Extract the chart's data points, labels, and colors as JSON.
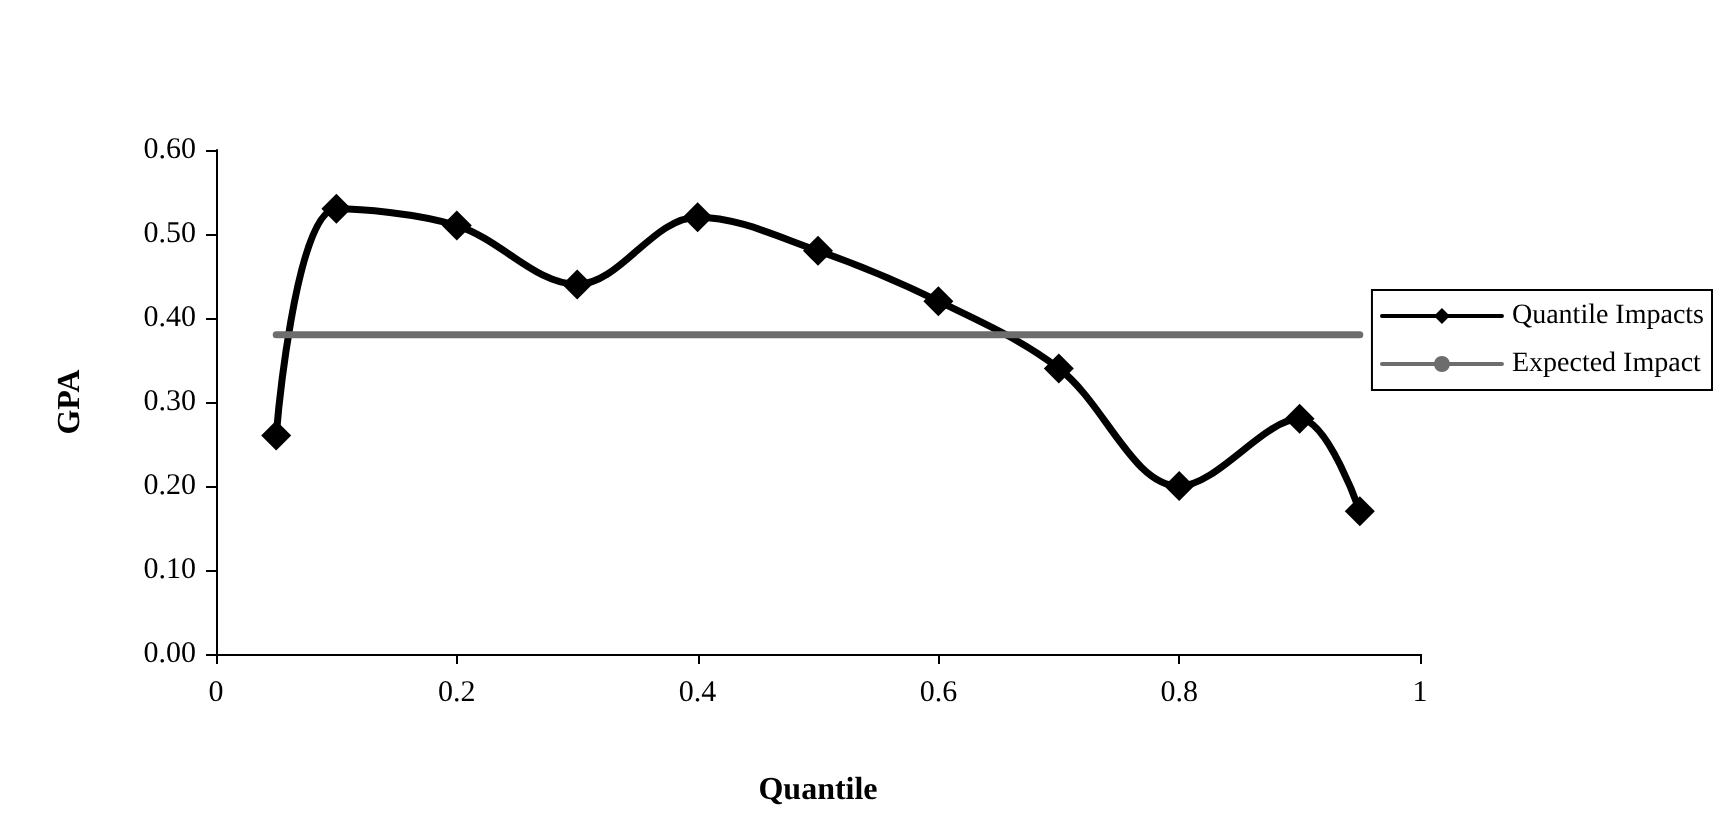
{
  "chart_data": {
    "type": "line",
    "xlabel": "Quantile",
    "ylabel": "GPA",
    "x": [
      0.05,
      0.1,
      0.2,
      0.3,
      0.4,
      0.5,
      0.6,
      0.7,
      0.8,
      0.9,
      0.95
    ],
    "series": [
      {
        "name": "Quantile Impacts",
        "color": "#000000",
        "values": [
          0.26,
          0.53,
          0.51,
          0.44,
          0.52,
          0.48,
          0.42,
          0.34,
          0.2,
          0.28,
          0.17
        ]
      },
      {
        "name": "Expected Impact",
        "color": "#6d6d6d",
        "x": [
          0.05,
          0.95
        ],
        "values": [
          0.38,
          0.38
        ],
        "marker": "none"
      }
    ],
    "xlim": [
      0,
      1
    ],
    "xticks": [
      0,
      0.2,
      0.4,
      0.6,
      0.8,
      1
    ],
    "ylim": [
      0,
      0.6
    ],
    "yticks": [
      {
        "value": 0,
        "label": "0.00"
      },
      {
        "value": 0.1,
        "label": "0.10"
      },
      {
        "value": 0.2,
        "label": "0.20"
      },
      {
        "value": 0.3,
        "label": "0.30"
      },
      {
        "value": 0.4,
        "label": "0.40"
      },
      {
        "value": 0.5,
        "label": "0.50"
      },
      {
        "value": 0.6,
        "label": "0.60"
      }
    ],
    "marker": "diamond",
    "line_style": "solid",
    "grid": false,
    "legend": "right"
  }
}
